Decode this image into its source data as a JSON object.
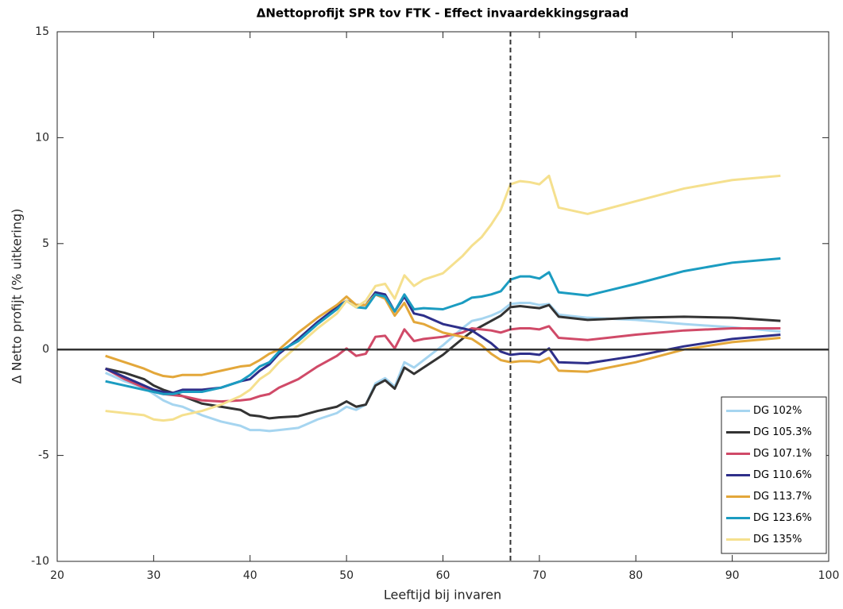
{
  "chart_data": {
    "type": "line",
    "title": "ΔNettoprofijt SPR tov FTK - Effect invaardekkingsgraad",
    "xlabel": "Leeftijd bij invaren",
    "ylabel": "Δ Netto profijt (% uitkering)",
    "x": [
      25,
      27,
      29,
      30,
      31,
      32,
      33,
      35,
      37,
      39,
      40,
      41,
      42,
      43,
      45,
      47,
      49,
      50,
      51,
      52,
      53,
      54,
      55,
      56,
      57,
      58,
      60,
      62,
      63,
      64,
      65,
      66,
      67,
      68,
      69,
      70,
      71,
      72,
      75,
      80,
      85,
      90,
      95
    ],
    "series": [
      {
        "name": "DG 102%",
        "color": "#a6d5f0",
        "values": [
          -1.1,
          -1.5,
          -1.8,
          -2.1,
          -2.4,
          -2.6,
          -2.7,
          -3.1,
          -3.4,
          -3.6,
          -3.8,
          -3.8,
          -3.85,
          -3.8,
          -3.7,
          -3.3,
          -3.0,
          -2.7,
          -2.85,
          -2.6,
          -1.6,
          -1.35,
          -1.75,
          -0.6,
          -0.85,
          -0.5,
          0.2,
          1.0,
          1.35,
          1.45,
          1.6,
          1.8,
          2.15,
          2.2,
          2.2,
          2.1,
          2.15,
          1.65,
          1.5,
          1.4,
          1.2,
          1.05,
          0.85
        ]
      },
      {
        "name": "DG 105.3%",
        "color": "#333333",
        "values": [
          -0.9,
          -1.1,
          -1.4,
          -1.7,
          -1.9,
          -2.05,
          -2.2,
          -2.55,
          -2.7,
          -2.85,
          -3.1,
          -3.15,
          -3.25,
          -3.2,
          -3.15,
          -2.9,
          -2.7,
          -2.45,
          -2.7,
          -2.6,
          -1.7,
          -1.45,
          -1.85,
          -0.85,
          -1.15,
          -0.85,
          -0.25,
          0.5,
          0.85,
          1.1,
          1.35,
          1.6,
          2.0,
          2.05,
          2.0,
          1.95,
          2.1,
          1.55,
          1.4,
          1.5,
          1.55,
          1.5,
          1.35
        ]
      },
      {
        "name": "DG 107.1%",
        "color": "#d04a68",
        "values": [
          -0.9,
          -1.4,
          -1.8,
          -2.0,
          -2.1,
          -2.15,
          -2.2,
          -2.4,
          -2.45,
          -2.4,
          -2.35,
          -2.2,
          -2.1,
          -1.8,
          -1.4,
          -0.8,
          -0.3,
          0.05,
          -0.3,
          -0.2,
          0.6,
          0.65,
          0.05,
          0.95,
          0.4,
          0.5,
          0.6,
          0.8,
          1.0,
          0.95,
          0.9,
          0.8,
          0.95,
          1.0,
          1.0,
          0.95,
          1.1,
          0.55,
          0.45,
          0.7,
          0.9,
          1.0,
          1.0
        ]
      },
      {
        "name": "DG 110.6%",
        "color": "#2e2f8a",
        "values": [
          -0.9,
          -1.3,
          -1.7,
          -1.9,
          -2.0,
          -2.05,
          -1.9,
          -1.9,
          -1.8,
          -1.5,
          -1.4,
          -1.0,
          -0.7,
          -0.2,
          0.5,
          1.3,
          2.0,
          2.3,
          2.1,
          2.1,
          2.7,
          2.6,
          1.8,
          2.5,
          1.7,
          1.6,
          1.2,
          1.0,
          0.9,
          0.6,
          0.3,
          -0.1,
          -0.25,
          -0.2,
          -0.2,
          -0.25,
          0.05,
          -0.6,
          -0.65,
          -0.3,
          0.15,
          0.5,
          0.7
        ]
      },
      {
        "name": "DG 113.7%",
        "color": "#e3a73a",
        "values": [
          -0.3,
          -0.6,
          -0.9,
          -1.1,
          -1.25,
          -1.3,
          -1.2,
          -1.2,
          -1.0,
          -0.8,
          -0.75,
          -0.5,
          -0.2,
          0.0,
          0.8,
          1.5,
          2.1,
          2.5,
          2.1,
          2.1,
          2.6,
          2.4,
          1.6,
          2.2,
          1.3,
          1.2,
          0.8,
          0.6,
          0.5,
          0.2,
          -0.2,
          -0.5,
          -0.6,
          -0.55,
          -0.55,
          -0.6,
          -0.4,
          -1.0,
          -1.05,
          -0.6,
          0.0,
          0.35,
          0.55
        ]
      },
      {
        "name": "DG 123.6%",
        "color": "#1b9cc1",
        "values": [
          -1.5,
          -1.7,
          -1.9,
          -2.0,
          -2.1,
          -2.1,
          -2.0,
          -2.0,
          -1.8,
          -1.5,
          -1.2,
          -0.8,
          -0.6,
          -0.1,
          0.4,
          1.2,
          1.9,
          2.3,
          2.0,
          1.95,
          2.6,
          2.5,
          1.8,
          2.6,
          1.9,
          1.95,
          1.9,
          2.2,
          2.45,
          2.5,
          2.6,
          2.75,
          3.3,
          3.45,
          3.45,
          3.35,
          3.65,
          2.7,
          2.55,
          3.1,
          3.7,
          4.1,
          4.3
        ]
      },
      {
        "name": "DG 135%",
        "color": "#f5e08e",
        "values": [
          -2.9,
          -3.0,
          -3.1,
          -3.3,
          -3.35,
          -3.3,
          -3.1,
          -2.9,
          -2.6,
          -2.2,
          -1.9,
          -1.4,
          -1.1,
          -0.6,
          0.2,
          1.0,
          1.7,
          2.3,
          2.0,
          2.3,
          3.0,
          3.1,
          2.4,
          3.5,
          3.0,
          3.3,
          3.6,
          4.4,
          4.9,
          5.3,
          5.9,
          6.6,
          7.8,
          7.95,
          7.9,
          7.8,
          8.2,
          6.7,
          6.4,
          7.0,
          7.6,
          8.0,
          8.2
        ]
      }
    ],
    "xlim": [
      20,
      100
    ],
    "xticks": [
      20,
      30,
      40,
      50,
      60,
      70,
      80,
      90,
      100
    ],
    "ylim": [
      -10,
      15
    ],
    "yticks": [
      -10,
      -5,
      0,
      5,
      10,
      15
    ],
    "hline": 0,
    "vline": 67,
    "grid": false,
    "legend": "bottom-right"
  }
}
